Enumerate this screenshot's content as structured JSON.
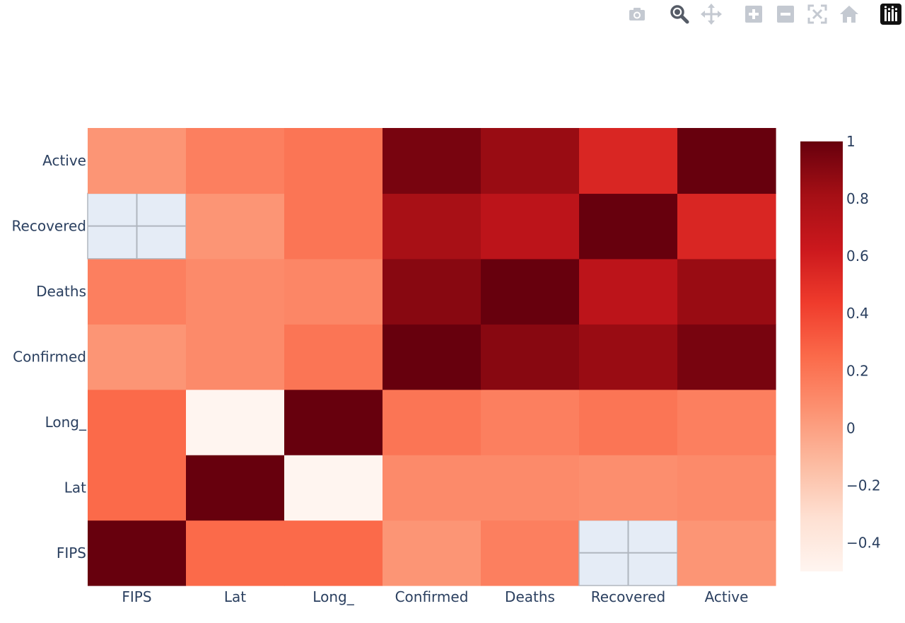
{
  "modebar": {
    "buttons": [
      {
        "name": "camera-icon",
        "label": "Download plot as a png"
      },
      {
        "name": "zoom-icon",
        "label": "Zoom"
      },
      {
        "name": "pan-icon",
        "label": "Pan"
      },
      {
        "name": "zoom-in-icon",
        "label": "Zoom in"
      },
      {
        "name": "zoom-out-icon",
        "label": "Zoom out"
      },
      {
        "name": "autoscale-icon",
        "label": "Autoscale"
      },
      {
        "name": "reset-axes-icon",
        "label": "Reset axes"
      },
      {
        "name": "plotly-logo-icon",
        "label": "Produced with Plotly"
      }
    ],
    "active": "zoom-icon"
  },
  "chart_data": {
    "type": "heatmap",
    "title": "",
    "xlabel": "",
    "ylabel": "",
    "x": [
      "FIPS",
      "Lat",
      "Long_",
      "Confirmed",
      "Deaths",
      "Recovered",
      "Active"
    ],
    "y": [
      "FIPS",
      "Lat",
      "Long_",
      "Confirmed",
      "Deaths",
      "Recovered",
      "Active"
    ],
    "z": [
      [
        1.0,
        0.25,
        0.25,
        0.05,
        0.15,
        null,
        0.05
      ],
      [
        0.25,
        1.0,
        -0.5,
        0.1,
        0.1,
        0.08,
        0.1
      ],
      [
        0.25,
        -0.5,
        1.0,
        0.2,
        0.15,
        0.2,
        0.15
      ],
      [
        0.05,
        0.1,
        0.2,
        1.0,
        0.9,
        0.85,
        0.95
      ],
      [
        0.15,
        0.1,
        0.12,
        0.9,
        1.0,
        0.7,
        0.85
      ],
      [
        null,
        0.05,
        0.2,
        0.8,
        0.7,
        1.0,
        0.55
      ],
      [
        0.05,
        0.15,
        0.2,
        0.95,
        0.85,
        0.55,
        1.0
      ]
    ],
    "zmin": -0.5,
    "zmax": 1.0,
    "colorscale": "Reds",
    "colorbar": {
      "ticks": [
        1,
        0.8,
        0.6,
        0.4,
        0.2,
        0,
        -0.2,
        -0.4
      ],
      "tick_labels": [
        "1",
        "0.8",
        "0.6",
        "0.4",
        "0.2",
        "0",
        "−0.2",
        "−0.4"
      ]
    },
    "missing_color": "#e5ecf6",
    "grid": true,
    "legend": "none"
  }
}
